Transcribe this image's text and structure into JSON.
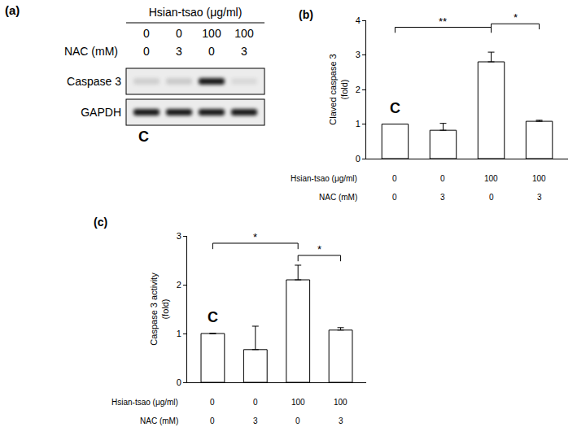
{
  "panel_a": {
    "panel_label": "(a)",
    "treatments": [
      {
        "label": "Hsian-tsao (μg/ml)",
        "values": [
          0,
          0,
          100,
          100
        ]
      },
      {
        "label": "NAC (mM)",
        "values": [
          0,
          3,
          0,
          3
        ]
      }
    ],
    "blots": [
      {
        "label": "Caspase 3",
        "intensity": [
          0.12,
          0.14,
          0.9,
          0.08
        ]
      },
      {
        "label": "GAPDH",
        "intensity": [
          0.9,
          0.9,
          0.9,
          0.9
        ]
      }
    ],
    "marker_label": "C"
  },
  "chart_data": [
    {
      "type": "bar",
      "panel_label": "(b)",
      "y_label": "Claved caspase 3\n(fold)",
      "categories": [
        null,
        null,
        null,
        null
      ],
      "values": [
        1,
        0.82,
        2.8,
        1.08
      ],
      "errors": [
        0,
        0.2,
        0.28,
        0.03
      ],
      "color": "#ffffff",
      "ylim": [
        0,
        4
      ],
      "yticks": [
        0,
        1,
        2,
        3,
        4
      ],
      "grid": false,
      "x_table": [
        {
          "label": "Hsian-tsao (μg/ml)",
          "values": [
            0,
            0,
            100,
            100
          ]
        },
        {
          "label": "NAC (mM)",
          "values": [
            0,
            3,
            0,
            3
          ]
        }
      ],
      "annotations": [
        {
          "text": "C",
          "category": 0
        }
      ],
      "brackets": [
        {
          "from": 0,
          "to": 2,
          "y": 3.8,
          "text": "**"
        },
        {
          "from": 2,
          "to": 3,
          "y": 3.9,
          "text": "*"
        }
      ]
    },
    {
      "type": "bar",
      "panel_label": "(c)",
      "y_label": "Caspase 3 activity\n(fold)",
      "categories": [
        null,
        null,
        null,
        null
      ],
      "values": [
        1,
        0.67,
        2.1,
        1.07
      ],
      "errors": [
        0,
        0.48,
        0.3,
        0.05
      ],
      "color": "#ffffff",
      "ylim": [
        0,
        3
      ],
      "yticks": [
        0,
        1,
        2,
        3
      ],
      "grid": false,
      "x_table": [
        {
          "label": "Hsian-tsao (μg/ml)",
          "values": [
            0,
            0,
            100,
            100
          ]
        },
        {
          "label": "NAC (mM)",
          "values": [
            0,
            3,
            0,
            3
          ]
        }
      ],
      "annotations": [
        {
          "text": "C",
          "category": 0
        }
      ],
      "brackets": [
        {
          "from": 0,
          "to": 2,
          "y": 2.85,
          "text": "*"
        },
        {
          "from": 2,
          "to": 3,
          "y": 2.6,
          "text": "*"
        }
      ]
    }
  ]
}
